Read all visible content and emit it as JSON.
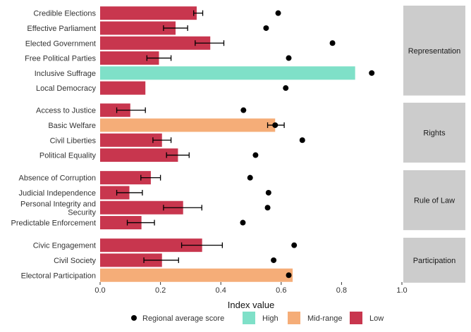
{
  "chart_data": {
    "type": "bar",
    "orientation": "horizontal",
    "xlabel": "Index value",
    "xlim": [
      0,
      1.0
    ],
    "xticks": [
      "0.0",
      "0.2",
      "0.4",
      "0.6",
      "0.8",
      "1.0"
    ],
    "grid": false,
    "legend_position": "bottom",
    "colors": {
      "High": "#7fe0c8",
      "Mid-range": "#f5ad78",
      "Low": "#c8364e",
      "regional": "#000000",
      "strip": "#cccccc"
    },
    "legend": [
      {
        "key": "regional",
        "label": "Regional average score",
        "shape": "point"
      },
      {
        "key": "High",
        "label": "High",
        "shape": "box"
      },
      {
        "key": "Mid-range",
        "label": "Mid-range",
        "shape": "box"
      },
      {
        "key": "Low",
        "label": "Low",
        "shape": "box"
      }
    ],
    "panels": [
      {
        "name": "Representation",
        "rows": [
          {
            "label": "Credible Elections",
            "value": 0.32,
            "category": "Low",
            "err": [
              0.31,
              0.34
            ],
            "regional": 0.59
          },
          {
            "label": "Effective Parliament",
            "value": 0.25,
            "category": "Low",
            "err": [
              0.21,
              0.29
            ],
            "regional": 0.55
          },
          {
            "label": "Elected Government",
            "value": 0.365,
            "category": "Low",
            "err": [
              0.315,
              0.41
            ],
            "regional": 0.77
          },
          {
            "label": "Free Political Parties",
            "value": 0.195,
            "category": "Low",
            "err": [
              0.155,
              0.235
            ],
            "regional": 0.625
          },
          {
            "label": "Inclusive Suffrage",
            "value": 0.845,
            "category": "High",
            "err": null,
            "regional": 0.9
          },
          {
            "label": "Local Democracy",
            "value": 0.15,
            "category": "Low",
            "err": null,
            "regional": 0.615
          }
        ]
      },
      {
        "name": "Rights",
        "rows": [
          {
            "label": "Access to Justice",
            "value": 0.1,
            "category": "Low",
            "err": [
              0.055,
              0.15
            ],
            "regional": 0.475
          },
          {
            "label": "Basic Welfare",
            "value": 0.58,
            "category": "Mid-range",
            "err": [
              0.555,
              0.61
            ],
            "regional": 0.58
          },
          {
            "label": "Civil Liberties",
            "value": 0.205,
            "category": "Low",
            "err": [
              0.175,
              0.235
            ],
            "regional": 0.67
          },
          {
            "label": "Political Equality",
            "value": 0.258,
            "category": "Low",
            "err": [
              0.22,
              0.295
            ],
            "regional": 0.515
          }
        ]
      },
      {
        "name": "Rule of Law",
        "rows": [
          {
            "label": "Absence of Corruption",
            "value": 0.168,
            "category": "Low",
            "err": [
              0.135,
              0.2
            ],
            "regional": 0.497
          },
          {
            "label": "Judicial Independence",
            "value": 0.097,
            "category": "Low",
            "err": [
              0.055,
              0.14
            ],
            "regional": 0.558
          },
          {
            "label": "Personal Integrity and Security",
            "value": 0.275,
            "category": "Low",
            "err": [
              0.21,
              0.337
            ],
            "regional": 0.555
          },
          {
            "label": "Predictable Enforcement",
            "value": 0.137,
            "category": "Low",
            "err": [
              0.09,
              0.18
            ],
            "regional": 0.473
          }
        ]
      },
      {
        "name": "Participation",
        "rows": [
          {
            "label": "Civic Engagement",
            "value": 0.338,
            "category": "Low",
            "err": [
              0.27,
              0.405
            ],
            "regional": 0.643
          },
          {
            "label": "Civil Society",
            "value": 0.205,
            "category": "Low",
            "err": [
              0.145,
              0.26
            ],
            "regional": 0.575
          },
          {
            "label": "Electoral Participation",
            "value": 0.638,
            "category": "Mid-range",
            "err": null,
            "regional": 0.625
          }
        ]
      }
    ]
  }
}
